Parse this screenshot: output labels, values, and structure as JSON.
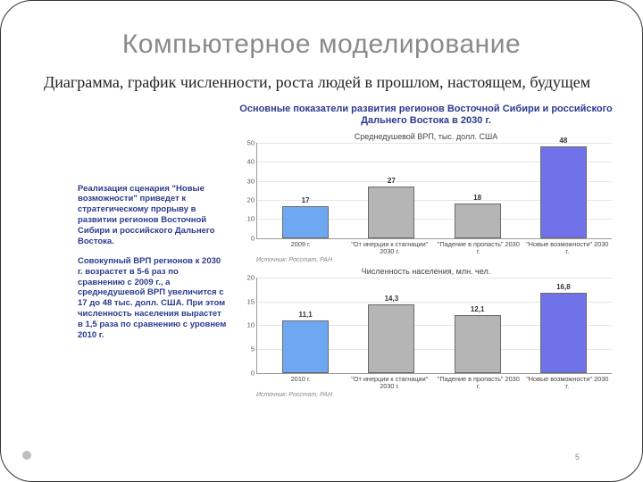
{
  "slide": {
    "title": "Компьютерное моделирование",
    "subtitle": "Диаграмма, график численности, роста людей в прошлом, настоящем, будущем",
    "page_number": "5"
  },
  "figure": {
    "title": "Основные показатели развития регионов Восточной Сибири и российского Дальнего Востока в 2030 г.",
    "side_text": {
      "p1": "Реализация сценария \"Новые возможности\" приведет к стратегическому прорыву в развитии регионов Восточной Сибири и российского Дальнего Востока.",
      "p2": "Совокупный ВРП регионов к 2030 г. возрастет в 5-6 раз по сравнению с 2009 г., а среднедушевой ВРП увеличится с 17 до 48 тыс. долл. США. При этом численность населения вырастет в 1,5 раза по сравнению с уровнем 2010 г."
    },
    "side_text_color": "#2b3a8f",
    "source_label": "Источник: Росстат, РАН",
    "charts": [
      {
        "type": "bar",
        "title": "Среднедушевой ВРП, тыс. долл. США",
        "ylim": [
          0,
          50
        ],
        "ytick_step": 10,
        "categories": [
          "2009 г.",
          "\"От инерции к стагнации\" 2030 г.",
          "\"Падение в пропасть\" 2030 г.",
          "\"Новые возможности\" 2030 г."
        ],
        "values": [
          17,
          27,
          18,
          48
        ],
        "bar_colors": [
          "#6fa8f2",
          "#b5b5b5",
          "#b5b5b5",
          "#6f72e8"
        ],
        "bar_border": "#6a6a6a",
        "grid_color": "#e6e6e6",
        "label_fontsize": 8,
        "title_fontsize": 9
      },
      {
        "type": "bar",
        "title": "Численность населения, млн. чел.",
        "ylim": [
          0,
          20
        ],
        "ytick_step": 5,
        "categories": [
          "2010 г.",
          "\"От инерции к стагнации\" 2030 г.",
          "\"Падение в пропасть\" 2030 г.",
          "\"Новые возможности\" 2030 г."
        ],
        "values": [
          11.1,
          14.3,
          12.1,
          16.8
        ],
        "bar_colors": [
          "#6fa8f2",
          "#b5b5b5",
          "#b5b5b5",
          "#6f72e8"
        ],
        "bar_border": "#6a6a6a",
        "grid_color": "#e6e6e6",
        "label_fontsize": 8,
        "title_fontsize": 9
      }
    ]
  }
}
